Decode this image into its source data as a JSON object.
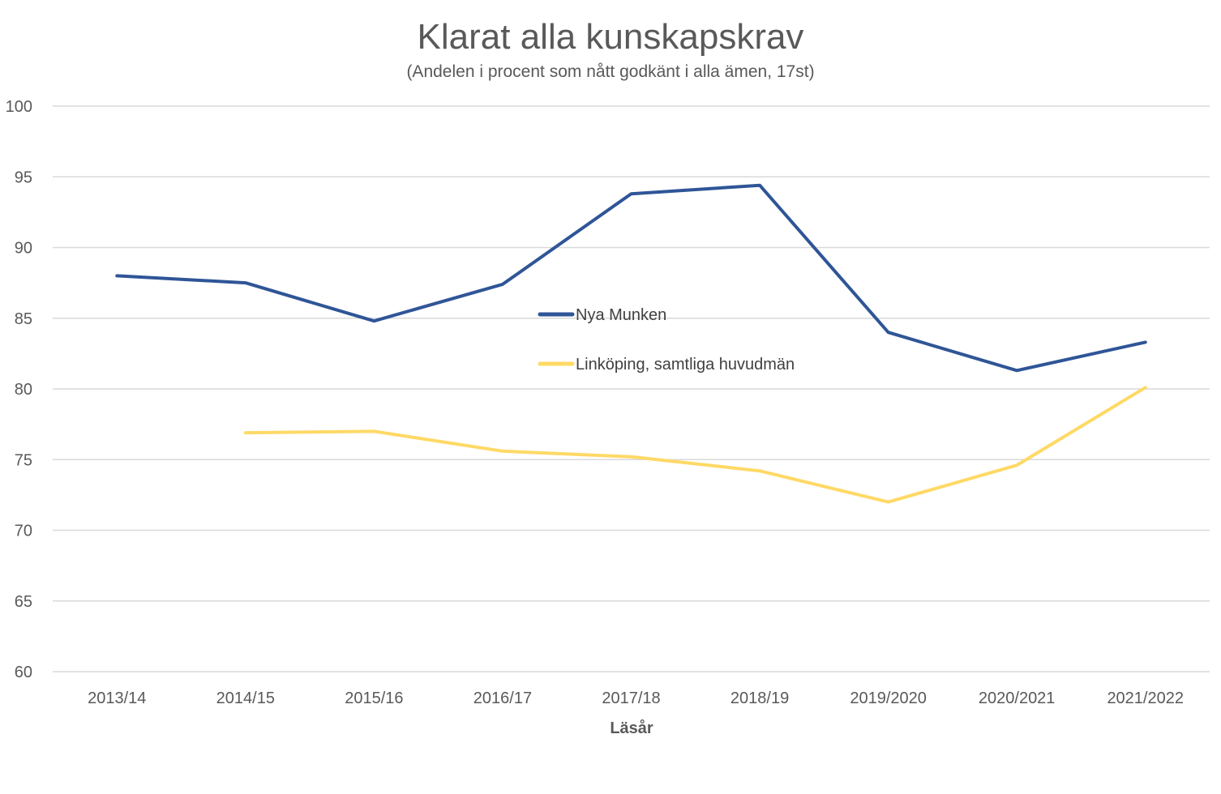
{
  "chart_data": {
    "type": "line",
    "title": "Klarat alla kunskapskrav",
    "subtitle": "(Andelen i procent som nått godkänt i alla ämen, 17st)",
    "xlabel": "Läsår",
    "ylabel": "",
    "ylim": [
      60,
      100
    ],
    "yticks": [
      60,
      65,
      70,
      75,
      80,
      85,
      90,
      95,
      100
    ],
    "ytick_labels": [
      "60",
      "65",
      "70",
      "75",
      "80",
      "85",
      "90",
      "95",
      "100"
    ],
    "grid": true,
    "legend_position": "center",
    "categories": [
      "2013/14",
      "2014/15",
      "2015/16",
      "2016/17",
      "2017/18",
      "2018/19",
      "2019/2020",
      "2020/2021",
      "2021/2022"
    ],
    "series": [
      {
        "name": "Nya Munken",
        "color": "#2f5597",
        "values": [
          88.0,
          87.5,
          84.8,
          87.4,
          93.8,
          94.4,
          84.0,
          81.3,
          83.3
        ]
      },
      {
        "name": "Linköping, samtliga huvudmän",
        "color": "#ffd966",
        "values": [
          null,
          76.9,
          77.0,
          75.6,
          75.2,
          74.2,
          72.0,
          74.6,
          80.1
        ]
      }
    ]
  }
}
